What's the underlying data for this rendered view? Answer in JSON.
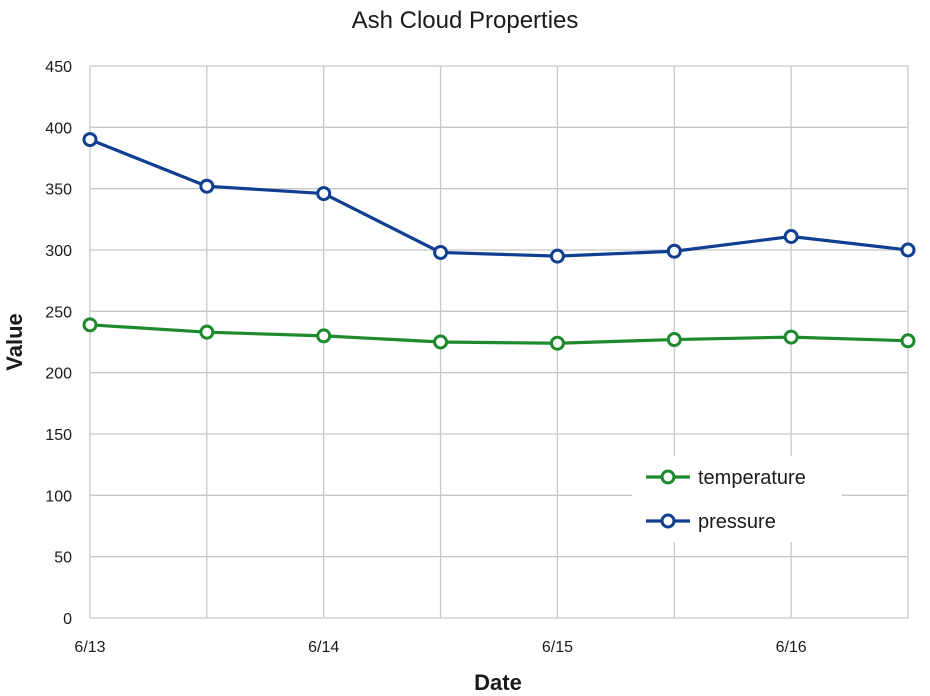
{
  "chart_data": {
    "type": "line",
    "title": "Ash Cloud Properties",
    "xlabel": "Date",
    "ylabel": "Value",
    "ylim": [
      0,
      450
    ],
    "yticks": [
      0,
      50,
      100,
      150,
      200,
      250,
      300,
      350,
      400,
      450
    ],
    "x_tick_labels": [
      "6/13",
      "6/14",
      "6/15",
      "6/16"
    ],
    "x_tick_values": [
      "2013-06-13",
      "2013-06-14",
      "2013-06-15",
      "2013-06-16"
    ],
    "x": [
      "2013-06-13 00:00",
      "2013-06-13 12:00",
      "2013-06-14 00:00",
      "2013-06-14 12:00",
      "2013-06-15 00:00",
      "2013-06-15 12:00",
      "2013-06-16 00:00",
      "2013-06-16 12:00"
    ],
    "grid": true,
    "legend_position": "bottom-right",
    "series": [
      {
        "name": "temperature",
        "color": "#1e8a2e",
        "values": [
          239,
          233,
          230,
          225,
          224,
          227,
          229,
          226
        ]
      },
      {
        "name": "pressure",
        "color": "#103f92",
        "values": [
          390,
          352,
          346,
          298,
          295,
          299,
          311,
          300
        ]
      }
    ]
  }
}
